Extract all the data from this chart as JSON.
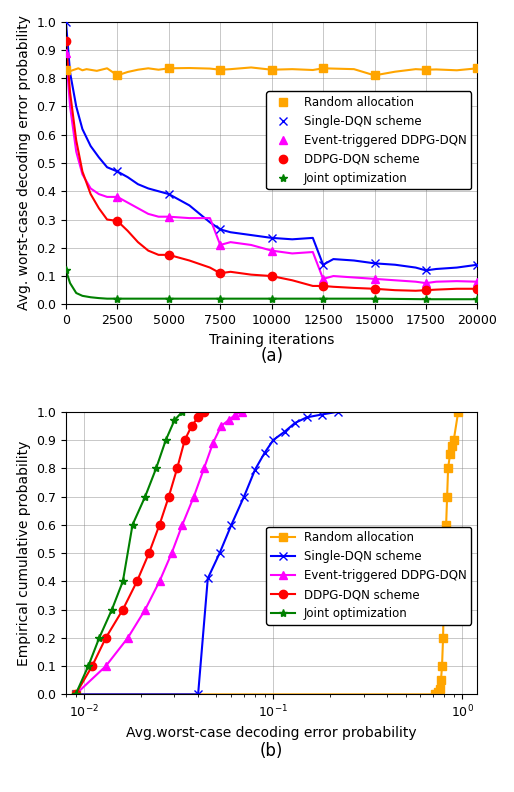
{
  "subplot_a": {
    "title": "(a)",
    "xlabel": "Training iterations",
    "ylabel": "Avg. worst-case decoding error probability",
    "xlim": [
      0,
      20000
    ],
    "ylim": [
      0,
      1.0
    ],
    "xticks": [
      0,
      2500,
      5000,
      7500,
      10000,
      12500,
      15000,
      17500,
      20000
    ],
    "yticks": [
      0.0,
      0.1,
      0.2,
      0.3,
      0.4,
      0.5,
      0.6,
      0.7,
      0.8,
      0.9,
      1.0
    ],
    "random": {
      "x": [
        0,
        200,
        400,
        600,
        800,
        1000,
        1500,
        2000,
        2500,
        3000,
        3500,
        4000,
        4500,
        5000,
        6000,
        7000,
        7500,
        8000,
        9000,
        10000,
        11000,
        12000,
        12500,
        13000,
        14000,
        15000,
        16000,
        17000,
        17500,
        18000,
        19000,
        20000
      ],
      "y": [
        0.83,
        0.825,
        0.83,
        0.835,
        0.828,
        0.832,
        0.826,
        0.835,
        0.81,
        0.822,
        0.83,
        0.835,
        0.83,
        0.835,
        0.836,
        0.834,
        0.83,
        0.832,
        0.838,
        0.83,
        0.832,
        0.829,
        0.835,
        0.834,
        0.832,
        0.81,
        0.823,
        0.832,
        0.83,
        0.831,
        0.828,
        0.835
      ],
      "marker_x": [
        0,
        2500,
        5000,
        7500,
        10000,
        12500,
        15000,
        17500,
        20000
      ],
      "marker_y": [
        0.83,
        0.81,
        0.835,
        0.83,
        0.83,
        0.835,
        0.81,
        0.83,
        0.835
      ],
      "color": "orange",
      "marker": "s",
      "label": "Random allocation"
    },
    "single_dqn": {
      "x": [
        0,
        200,
        500,
        800,
        1200,
        1600,
        2000,
        2500,
        3000,
        3500,
        4000,
        4500,
        5000,
        6000,
        7000,
        7500,
        8000,
        9000,
        10000,
        11000,
        12000,
        12500,
        13000,
        14000,
        15000,
        16000,
        17000,
        17500,
        18000,
        19000,
        20000
      ],
      "y": [
        1.0,
        0.82,
        0.7,
        0.62,
        0.56,
        0.52,
        0.485,
        0.47,
        0.45,
        0.425,
        0.41,
        0.4,
        0.39,
        0.35,
        0.29,
        0.265,
        0.255,
        0.245,
        0.235,
        0.23,
        0.235,
        0.14,
        0.16,
        0.155,
        0.145,
        0.14,
        0.13,
        0.12,
        0.125,
        0.13,
        0.14
      ],
      "marker_x": [
        0,
        2500,
        5000,
        7500,
        10000,
        12500,
        15000,
        17500,
        20000
      ],
      "marker_y": [
        1.0,
        0.47,
        0.39,
        0.265,
        0.235,
        0.14,
        0.145,
        0.12,
        0.14
      ],
      "color": "blue",
      "marker": "x",
      "label": "Single-DQN scheme"
    },
    "event_ddpg": {
      "x": [
        0,
        200,
        500,
        800,
        1200,
        1600,
        2000,
        2500,
        3000,
        3500,
        4000,
        4500,
        5000,
        6000,
        7000,
        7500,
        8000,
        9000,
        10000,
        11000,
        12000,
        12500,
        13000,
        14000,
        15000,
        16000,
        17000,
        17500,
        18000,
        19000,
        20000
      ],
      "y": [
        0.89,
        0.7,
        0.54,
        0.46,
        0.41,
        0.39,
        0.38,
        0.38,
        0.36,
        0.34,
        0.32,
        0.31,
        0.31,
        0.305,
        0.305,
        0.21,
        0.22,
        0.21,
        0.19,
        0.18,
        0.185,
        0.09,
        0.1,
        0.095,
        0.09,
        0.085,
        0.08,
        0.075,
        0.08,
        0.082,
        0.08
      ],
      "marker_x": [
        0,
        2500,
        5000,
        7500,
        10000,
        12500,
        15000,
        17500,
        20000
      ],
      "marker_y": [
        0.89,
        0.38,
        0.31,
        0.21,
        0.19,
        0.09,
        0.09,
        0.075,
        0.08
      ],
      "color": "magenta",
      "marker": "^",
      "label": "Event-triggered DDPG-DQN"
    },
    "ddpg_dqn": {
      "x": [
        0,
        200,
        500,
        800,
        1200,
        1600,
        2000,
        2500,
        3000,
        3500,
        4000,
        4500,
        5000,
        6000,
        7000,
        7500,
        8000,
        9000,
        10000,
        11000,
        12000,
        12500,
        13000,
        14000,
        15000,
        16000,
        17000,
        17500,
        18000,
        19000,
        20000
      ],
      "y": [
        0.93,
        0.75,
        0.58,
        0.47,
        0.39,
        0.34,
        0.3,
        0.295,
        0.26,
        0.22,
        0.19,
        0.175,
        0.175,
        0.155,
        0.13,
        0.11,
        0.115,
        0.105,
        0.1,
        0.085,
        0.065,
        0.065,
        0.062,
        0.058,
        0.055,
        0.05,
        0.048,
        0.05,
        0.052,
        0.055,
        0.055
      ],
      "marker_x": [
        0,
        2500,
        5000,
        7500,
        10000,
        12500,
        15000,
        17500,
        20000
      ],
      "marker_y": [
        0.93,
        0.295,
        0.175,
        0.11,
        0.1,
        0.065,
        0.055,
        0.05,
        0.055
      ],
      "color": "red",
      "marker": "o",
      "label": "DDPG-DQN scheme"
    },
    "joint": {
      "x": [
        0,
        200,
        500,
        800,
        1200,
        1600,
        2000,
        2500,
        3000,
        4000,
        5000,
        7500,
        10000,
        12500,
        15000,
        17500,
        20000
      ],
      "y": [
        0.12,
        0.075,
        0.04,
        0.03,
        0.025,
        0.022,
        0.02,
        0.02,
        0.02,
        0.02,
        0.02,
        0.02,
        0.02,
        0.02,
        0.02,
        0.018,
        0.018
      ],
      "marker_x": [
        0,
        2500,
        5000,
        7500,
        10000,
        12500,
        15000,
        17500,
        20000
      ],
      "marker_y": [
        0.12,
        0.02,
        0.02,
        0.02,
        0.02,
        0.02,
        0.02,
        0.018,
        0.018
      ],
      "color": "green",
      "marker": "*",
      "label": "Joint optimization"
    }
  },
  "subplot_b": {
    "title": "(b)",
    "xlabel": "Avg.worst-case decoding error probability",
    "ylabel": "Empirical cumulative probability",
    "random": {
      "x": [
        0.009,
        0.72,
        0.74,
        0.76,
        0.77,
        0.78,
        0.79,
        0.8,
        0.81,
        0.82,
        0.83,
        0.84,
        0.86,
        0.88,
        0.9,
        0.95
      ],
      "y": [
        0.0,
        0.0,
        0.01,
        0.02,
        0.05,
        0.1,
        0.2,
        0.4,
        0.5,
        0.6,
        0.7,
        0.8,
        0.85,
        0.88,
        0.9,
        1.0
      ],
      "color": "orange",
      "marker": "s",
      "label": "Random allocation"
    },
    "single_dqn": {
      "x": [
        0.009,
        0.04,
        0.045,
        0.052,
        0.06,
        0.07,
        0.08,
        0.09,
        0.1,
        0.115,
        0.13,
        0.15,
        0.18,
        0.22
      ],
      "y": [
        0.0,
        0.0,
        0.41,
        0.5,
        0.6,
        0.7,
        0.795,
        0.855,
        0.9,
        0.93,
        0.96,
        0.98,
        0.99,
        1.0
      ],
      "color": "blue",
      "marker": "x",
      "label": "Single-DQN scheme"
    },
    "event_ddpg": {
      "x": [
        0.009,
        0.013,
        0.017,
        0.021,
        0.025,
        0.029,
        0.033,
        0.038,
        0.043,
        0.048,
        0.053,
        0.058,
        0.063,
        0.068
      ],
      "y": [
        0.0,
        0.1,
        0.2,
        0.3,
        0.4,
        0.5,
        0.6,
        0.7,
        0.8,
        0.89,
        0.95,
        0.97,
        0.99,
        1.0
      ],
      "color": "magenta",
      "marker": "^",
      "label": "Event-triggered DDPG-DQN"
    },
    "ddpg_dqn": {
      "x": [
        0.009,
        0.011,
        0.013,
        0.016,
        0.019,
        0.022,
        0.025,
        0.028,
        0.031,
        0.034,
        0.037,
        0.04,
        0.043
      ],
      "y": [
        0.0,
        0.1,
        0.2,
        0.3,
        0.4,
        0.5,
        0.6,
        0.7,
        0.8,
        0.9,
        0.95,
        0.98,
        1.0
      ],
      "color": "red",
      "marker": "o",
      "label": "DDPG-DQN scheme"
    },
    "joint": {
      "x": [
        0.009,
        0.0105,
        0.012,
        0.014,
        0.016,
        0.018,
        0.021,
        0.024,
        0.027,
        0.03,
        0.033
      ],
      "y": [
        0.0,
        0.1,
        0.2,
        0.3,
        0.4,
        0.6,
        0.7,
        0.8,
        0.9,
        0.97,
        1.0
      ],
      "color": "green",
      "marker": "*",
      "label": "Joint optimization"
    }
  }
}
